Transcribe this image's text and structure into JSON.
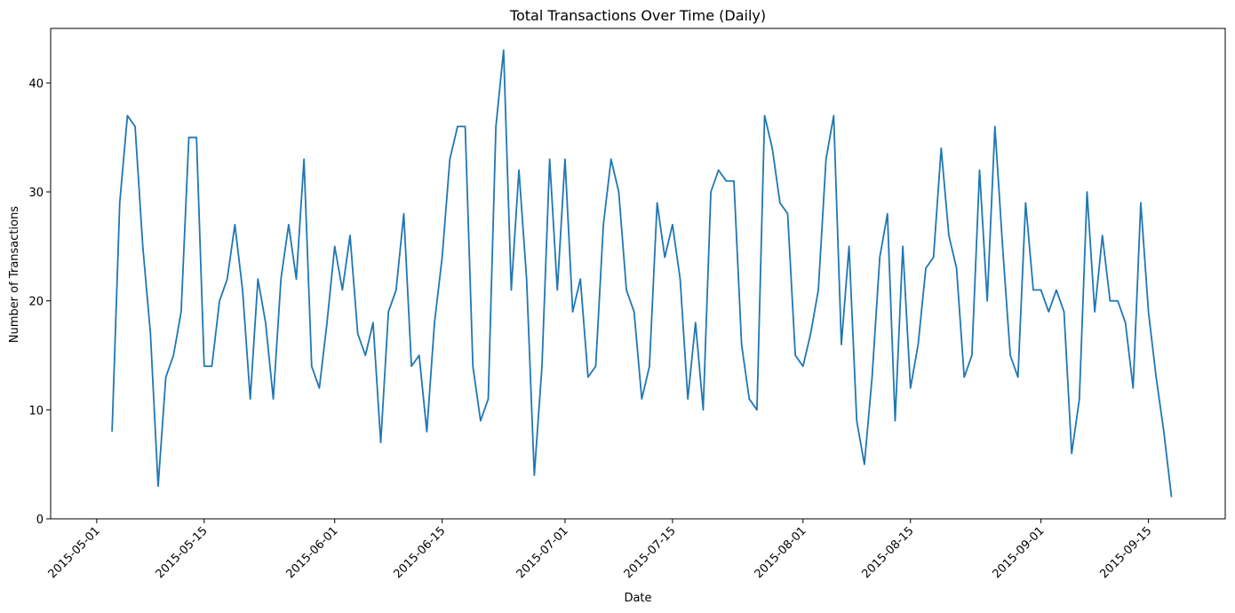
{
  "chart_data": {
    "type": "line",
    "title": "Total Transactions Over Time (Daily)",
    "xlabel": "Date",
    "ylabel": "Number of Transactions",
    "xlim": [
      "2015-04-25",
      "2015-09-25"
    ],
    "ylim": [
      0,
      45
    ],
    "grid": false,
    "line_color": "#1f77b4",
    "x_ticks": [
      "2015-05-01",
      "2015-05-15",
      "2015-06-01",
      "2015-06-15",
      "2015-07-01",
      "2015-07-15",
      "2015-08-01",
      "2015-08-15",
      "2015-09-01",
      "2015-09-15"
    ],
    "y_ticks": [
      0,
      10,
      20,
      30,
      40
    ],
    "series": [
      {
        "x": [
          "2015-05-03",
          "2015-05-04",
          "2015-05-05",
          "2015-05-06",
          "2015-05-07",
          "2015-05-08",
          "2015-05-09",
          "2015-05-10",
          "2015-05-11",
          "2015-05-12",
          "2015-05-13",
          "2015-05-14",
          "2015-05-15",
          "2015-05-16",
          "2015-05-17",
          "2015-05-18",
          "2015-05-19",
          "2015-05-20",
          "2015-05-21",
          "2015-05-22",
          "2015-05-23",
          "2015-05-24",
          "2015-05-25",
          "2015-05-26",
          "2015-05-27",
          "2015-05-28",
          "2015-05-29",
          "2015-05-30",
          "2015-05-31",
          "2015-06-01",
          "2015-06-02",
          "2015-06-03",
          "2015-06-04",
          "2015-06-05",
          "2015-06-06",
          "2015-06-07",
          "2015-06-08",
          "2015-06-09",
          "2015-06-10",
          "2015-06-11",
          "2015-06-12",
          "2015-06-13",
          "2015-06-14",
          "2015-06-15",
          "2015-06-16",
          "2015-06-17",
          "2015-06-18",
          "2015-06-19",
          "2015-06-20",
          "2015-06-21",
          "2015-06-22",
          "2015-06-23",
          "2015-06-24",
          "2015-06-25",
          "2015-06-26",
          "2015-06-27",
          "2015-06-28",
          "2015-06-29",
          "2015-06-30",
          "2015-07-01",
          "2015-07-02",
          "2015-07-03",
          "2015-07-04",
          "2015-07-05",
          "2015-07-06",
          "2015-07-07",
          "2015-07-08",
          "2015-07-09",
          "2015-07-10",
          "2015-07-11",
          "2015-07-12",
          "2015-07-13",
          "2015-07-14",
          "2015-07-15",
          "2015-07-16",
          "2015-07-17",
          "2015-07-18",
          "2015-07-19",
          "2015-07-20",
          "2015-07-21",
          "2015-07-22",
          "2015-07-23",
          "2015-07-24",
          "2015-07-25",
          "2015-07-26",
          "2015-07-27",
          "2015-07-28",
          "2015-07-29",
          "2015-07-30",
          "2015-07-31",
          "2015-08-01",
          "2015-08-02",
          "2015-08-03",
          "2015-08-04",
          "2015-08-05",
          "2015-08-06",
          "2015-08-07",
          "2015-08-08",
          "2015-08-09",
          "2015-08-10",
          "2015-08-11",
          "2015-08-12",
          "2015-08-13",
          "2015-08-14",
          "2015-08-15",
          "2015-08-16",
          "2015-08-17",
          "2015-08-18",
          "2015-08-19",
          "2015-08-20",
          "2015-08-21",
          "2015-08-22",
          "2015-08-23",
          "2015-08-24",
          "2015-08-25",
          "2015-08-26",
          "2015-08-27",
          "2015-08-28",
          "2015-08-29",
          "2015-08-30",
          "2015-08-31",
          "2015-09-01",
          "2015-09-02",
          "2015-09-03",
          "2015-09-04",
          "2015-09-05",
          "2015-09-06",
          "2015-09-07",
          "2015-09-08",
          "2015-09-09",
          "2015-09-10",
          "2015-09-11",
          "2015-09-12",
          "2015-09-13",
          "2015-09-14",
          "2015-09-15",
          "2015-09-16",
          "2015-09-17",
          "2015-09-18"
        ],
        "y": [
          8,
          29,
          37,
          36,
          25,
          17,
          3,
          13,
          15,
          19,
          35,
          35,
          14,
          14,
          20,
          22,
          27,
          21,
          11,
          22,
          18,
          11,
          22,
          27,
          22,
          33,
          14,
          12,
          18,
          25,
          21,
          26,
          17,
          15,
          18,
          7,
          19,
          21,
          28,
          14,
          15,
          8,
          18,
          24,
          33,
          36,
          36,
          14,
          9,
          11,
          36,
          43,
          21,
          32,
          22,
          4,
          14,
          33,
          21,
          33,
          19,
          22,
          13,
          14,
          27,
          33,
          30,
          21,
          19,
          11,
          14,
          29,
          24,
          27,
          22,
          11,
          18,
          10,
          30,
          32,
          31,
          31,
          16,
          11,
          10,
          37,
          34,
          29,
          28,
          15,
          14,
          17,
          21,
          33,
          37,
          16,
          25,
          9,
          5,
          13,
          24,
          28,
          9,
          25,
          12,
          16,
          23,
          24,
          34,
          26,
          23,
          13,
          15,
          32,
          20,
          36,
          25,
          15,
          13,
          29,
          21,
          21,
          19,
          21,
          19,
          6,
          11,
          30,
          19,
          26,
          20,
          20,
          18,
          12,
          29,
          19,
          13,
          8,
          2
        ]
      }
    ]
  }
}
